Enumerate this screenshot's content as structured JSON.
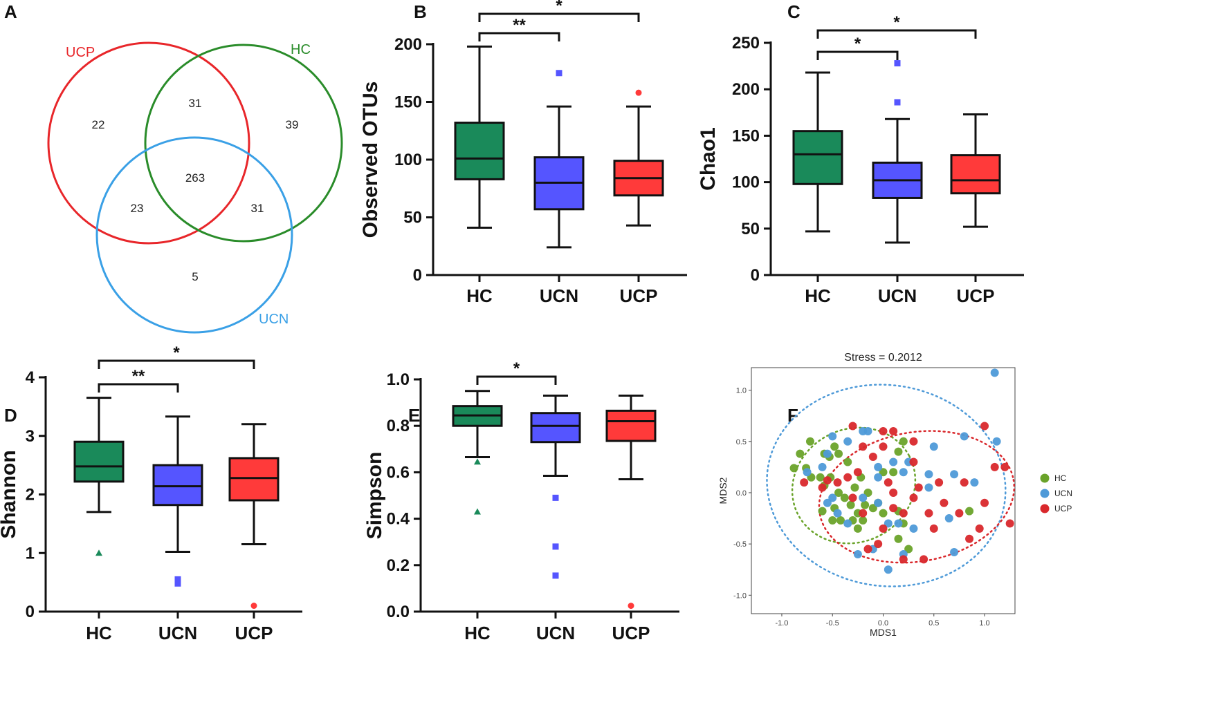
{
  "colors": {
    "HC": "#1a8a5a",
    "UCN": "#5555ff",
    "UCP": "#ff3a3a",
    "venn_UCP": "#e8262a",
    "venn_HC": "#2a8c2a",
    "venn_UCN": "#3aa0e6",
    "nmds_HC": "#6aa32a",
    "nmds_UCN": "#4e9ad8",
    "nmds_UCP": "#d9282c"
  },
  "chart_data": [
    {
      "panel": "A",
      "type": "venn",
      "sets": [
        "UCP",
        "HC",
        "UCN"
      ],
      "regions": {
        "UCP_only": "22",
        "HC_only": "39",
        "UCN_only": "5",
        "UCP_HC": "31",
        "UCP_UCN": "23",
        "HC_UCN": "31",
        "all": "263"
      }
    },
    {
      "panel": "B",
      "type": "box",
      "ylabel": "Observed OTUs",
      "ylim": [
        0,
        200
      ],
      "yticks": [
        "0",
        "50",
        "100",
        "150",
        "200"
      ],
      "categories": [
        "HC",
        "UCN",
        "UCP"
      ],
      "boxes": [
        {
          "min": 41,
          "q1": 83,
          "median": 101,
          "q3": 132,
          "max": 198,
          "outliers": []
        },
        {
          "min": 24,
          "q1": 57,
          "median": 80,
          "q3": 102,
          "max": 146,
          "outliers": [
            175
          ]
        },
        {
          "min": 43,
          "q1": 69,
          "median": 84,
          "q3": 99,
          "max": 146,
          "outliers": [
            158
          ]
        }
      ],
      "significance": [
        {
          "pair": [
            0,
            1
          ],
          "label": "**"
        },
        {
          "pair": [
            0,
            2
          ],
          "label": "*"
        }
      ]
    },
    {
      "panel": "C",
      "type": "box",
      "ylabel": "Chao1",
      "ylim": [
        0,
        250
      ],
      "yticks": [
        "0",
        "50",
        "100",
        "150",
        "200",
        "250"
      ],
      "categories": [
        "HC",
        "UCN",
        "UCP"
      ],
      "boxes": [
        {
          "min": 47,
          "q1": 98,
          "median": 130,
          "q3": 155,
          "max": 218,
          "outliers": []
        },
        {
          "min": 35,
          "q1": 83,
          "median": 102,
          "q3": 121,
          "max": 168,
          "outliers": [
            228,
            186
          ]
        },
        {
          "min": 52,
          "q1": 88,
          "median": 102,
          "q3": 129,
          "max": 173,
          "outliers": []
        }
      ],
      "significance": [
        {
          "pair": [
            0,
            1
          ],
          "label": "*"
        },
        {
          "pair": [
            0,
            2
          ],
          "label": "*"
        }
      ]
    },
    {
      "panel": "D",
      "type": "box",
      "ylabel": "Shannon",
      "ylim": [
        0,
        4
      ],
      "yticks": [
        "0",
        "1",
        "2",
        "3",
        "4"
      ],
      "categories": [
        "HC",
        "UCN",
        "UCP"
      ],
      "boxes": [
        {
          "min": 1.7,
          "q1": 2.22,
          "median": 2.48,
          "q3": 2.9,
          "max": 3.65,
          "outliers": [
            1.0
          ]
        },
        {
          "min": 1.02,
          "q1": 1.82,
          "median": 2.14,
          "q3": 2.5,
          "max": 3.33,
          "outliers": [
            0.48,
            0.55
          ]
        },
        {
          "min": 1.15,
          "q1": 1.9,
          "median": 2.28,
          "q3": 2.62,
          "max": 3.2,
          "outliers": [
            0.1
          ]
        }
      ],
      "significance": [
        {
          "pair": [
            0,
            1
          ],
          "label": "**"
        },
        {
          "pair": [
            0,
            2
          ],
          "label": "*"
        }
      ]
    },
    {
      "panel": "E",
      "type": "box",
      "ylabel": "Simpson",
      "ylim": [
        0,
        1
      ],
      "yticks": [
        "0.0",
        "0.2",
        "0.4",
        "0.6",
        "0.8",
        "1.0"
      ],
      "categories": [
        "HC",
        "UCN",
        "UCP"
      ],
      "boxes": [
        {
          "min": 0.665,
          "q1": 0.8,
          "median": 0.845,
          "q3": 0.885,
          "max": 0.95,
          "outliers": [
            0.645,
            0.43
          ]
        },
        {
          "min": 0.585,
          "q1": 0.73,
          "median": 0.8,
          "q3": 0.855,
          "max": 0.93,
          "outliers": [
            0.49,
            0.28,
            0.155
          ]
        },
        {
          "min": 0.57,
          "q1": 0.735,
          "median": 0.82,
          "q3": 0.865,
          "max": 0.93,
          "outliers": [
            0.025
          ]
        }
      ],
      "significance": [
        {
          "pair": [
            0,
            1
          ],
          "label": "*"
        }
      ]
    },
    {
      "panel": "F",
      "type": "scatter",
      "title": "Stress = 0.2012",
      "xlabel": "MDS1",
      "ylabel": "MDS2",
      "xlim": [
        -1.3,
        1.3
      ],
      "ylim": [
        -1.18,
        1.22
      ],
      "xticks": [
        "-1.0",
        "-0.5",
        "0.0",
        "0.5",
        "1.0"
      ],
      "yticks": [
        "-1.0",
        "-0.5",
        "0.0",
        "0.5",
        "1.0"
      ],
      "legend": [
        "HC",
        "UCN",
        "UCP"
      ],
      "series": [
        {
          "name": "HC",
          "points": [
            [
              -0.72,
              0.5
            ],
            [
              -0.58,
              0.38
            ],
            [
              -0.53,
              0.35
            ],
            [
              -0.48,
              0.45
            ],
            [
              -0.44,
              0.38
            ],
            [
              -0.35,
              0.3
            ],
            [
              -0.82,
              0.38
            ],
            [
              -0.88,
              0.24
            ],
            [
              -0.76,
              0.24
            ],
            [
              -0.62,
              0.15
            ],
            [
              -0.71,
              0.15
            ],
            [
              -0.52,
              0.15
            ],
            [
              -0.58,
              0.07
            ],
            [
              -0.44,
              0.0
            ],
            [
              -0.38,
              -0.05
            ],
            [
              -0.32,
              -0.12
            ],
            [
              -0.25,
              -0.2
            ],
            [
              -0.18,
              -0.12
            ],
            [
              -0.1,
              -0.15
            ],
            [
              -0.05,
              -0.1
            ],
            [
              0.0,
              -0.2
            ],
            [
              -0.2,
              -0.27
            ],
            [
              -0.3,
              -0.27
            ],
            [
              -0.42,
              -0.27
            ],
            [
              -0.5,
              -0.27
            ],
            [
              -0.6,
              -0.18
            ],
            [
              -0.48,
              -0.15
            ],
            [
              -0.28,
              0.05
            ],
            [
              -0.22,
              0.15
            ],
            [
              -0.15,
              0.0
            ],
            [
              0.0,
              0.2
            ],
            [
              0.1,
              0.2
            ],
            [
              0.15,
              0.4
            ],
            [
              0.2,
              0.5
            ],
            [
              0.15,
              -0.18
            ],
            [
              0.2,
              -0.3
            ],
            [
              0.25,
              -0.55
            ],
            [
              0.15,
              -0.45
            ],
            [
              -0.25,
              -0.35
            ],
            [
              0.85,
              -0.18
            ]
          ]
        },
        {
          "name": "UCN",
          "points": [
            [
              1.1,
              1.17
            ],
            [
              1.12,
              0.5
            ],
            [
              0.8,
              0.55
            ],
            [
              0.5,
              0.45
            ],
            [
              0.7,
              0.18
            ],
            [
              0.9,
              0.1
            ],
            [
              0.45,
              0.18
            ],
            [
              0.2,
              0.2
            ],
            [
              0.25,
              0.3
            ],
            [
              0.1,
              0.3
            ],
            [
              -0.05,
              0.25
            ],
            [
              -0.15,
              0.6
            ],
            [
              -0.2,
              0.6
            ],
            [
              -0.35,
              0.5
            ],
            [
              -0.5,
              0.55
            ],
            [
              -0.6,
              0.25
            ],
            [
              -0.75,
              0.2
            ],
            [
              -0.5,
              -0.05
            ],
            [
              -0.55,
              -0.1
            ],
            [
              -0.45,
              -0.2
            ],
            [
              -0.2,
              -0.05
            ],
            [
              -0.05,
              -0.1
            ],
            [
              0.05,
              -0.3
            ],
            [
              0.15,
              -0.3
            ],
            [
              -0.1,
              -0.55
            ],
            [
              -0.25,
              -0.6
            ],
            [
              0.05,
              -0.75
            ],
            [
              0.2,
              -0.6
            ],
            [
              0.3,
              -0.35
            ],
            [
              0.45,
              0.05
            ],
            [
              0.65,
              -0.25
            ],
            [
              0.7,
              -0.58
            ],
            [
              -0.35,
              -0.3
            ],
            [
              -0.05,
              0.15
            ],
            [
              -0.55,
              0.38
            ]
          ]
        },
        {
          "name": "UCP",
          "points": [
            [
              -0.3,
              0.65
            ],
            [
              -0.2,
              0.45
            ],
            [
              0.1,
              0.6
            ],
            [
              -0.1,
              0.35
            ],
            [
              0.0,
              0.45
            ],
            [
              0.3,
              0.5
            ],
            [
              0.05,
              0.1
            ],
            [
              -0.35,
              0.15
            ],
            [
              -0.25,
              0.2
            ],
            [
              -0.45,
              0.1
            ],
            [
              -0.55,
              0.12
            ],
            [
              -0.6,
              0.05
            ],
            [
              -0.78,
              0.1
            ],
            [
              -0.3,
              -0.05
            ],
            [
              -0.2,
              -0.2
            ],
            [
              0.0,
              -0.35
            ],
            [
              0.1,
              -0.15
            ],
            [
              0.2,
              -0.2
            ],
            [
              0.3,
              -0.05
            ],
            [
              0.35,
              0.05
            ],
            [
              0.45,
              -0.2
            ],
            [
              0.5,
              -0.35
            ],
            [
              0.55,
              0.1
            ],
            [
              0.6,
              -0.1
            ],
            [
              0.8,
              0.1
            ],
            [
              0.75,
              -0.2
            ],
            [
              0.85,
              -0.45
            ],
            [
              0.95,
              -0.35
            ],
            [
              1.0,
              -0.1
            ],
            [
              1.1,
              0.25
            ],
            [
              1.2,
              0.25
            ],
            [
              1.25,
              -0.3
            ],
            [
              1.0,
              0.65
            ],
            [
              0.2,
              -0.65
            ],
            [
              0.4,
              -0.65
            ],
            [
              -0.05,
              -0.5
            ],
            [
              -0.15,
              -0.55
            ],
            [
              0.1,
              0.0
            ],
            [
              0.3,
              0.3
            ],
            [
              0.0,
              0.6
            ]
          ]
        }
      ],
      "ellipses": [
        {
          "name": "HC",
          "cx": -0.29,
          "cy": 0.07,
          "rx": 0.62,
          "ry": 0.55,
          "angle_deg": -28
        },
        {
          "name": "UCN",
          "cx": 0.03,
          "cy": 0.07,
          "rx": 1.18,
          "ry": 0.98,
          "angle_deg": 8
        },
        {
          "name": "UCP",
          "cx": 0.33,
          "cy": -0.04,
          "rx": 0.97,
          "ry": 0.63,
          "angle_deg": -10
        }
      ]
    }
  ]
}
